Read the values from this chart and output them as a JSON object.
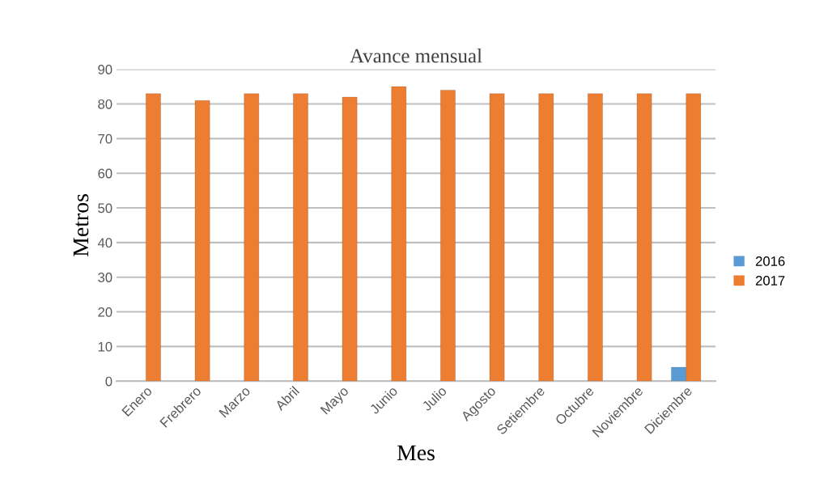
{
  "chart_data": {
    "type": "bar",
    "title": "Avance mensual",
    "xlabel": "Mes",
    "ylabel": "Metros",
    "categories": [
      "Enero",
      "Frebrero",
      "Marzo",
      "Abril",
      "Mayo",
      "Junio",
      "Julio",
      "Agosto",
      "Setiembre",
      "Octubre",
      "Noviembre",
      "Diciembre"
    ],
    "series": [
      {
        "name": "2016",
        "color": "#5b9bd5",
        "values": [
          null,
          null,
          null,
          null,
          null,
          null,
          null,
          null,
          null,
          null,
          null,
          4
        ]
      },
      {
        "name": "2017",
        "color": "#ed7d31",
        "values": [
          83,
          81,
          83,
          83,
          82,
          85,
          84,
          83,
          83,
          83,
          83,
          83
        ]
      }
    ],
    "ylim": [
      0,
      90
    ],
    "yticks": [
      0,
      10,
      20,
      30,
      40,
      50,
      60,
      70,
      80,
      90
    ],
    "grid": "y",
    "legend": "right"
  }
}
